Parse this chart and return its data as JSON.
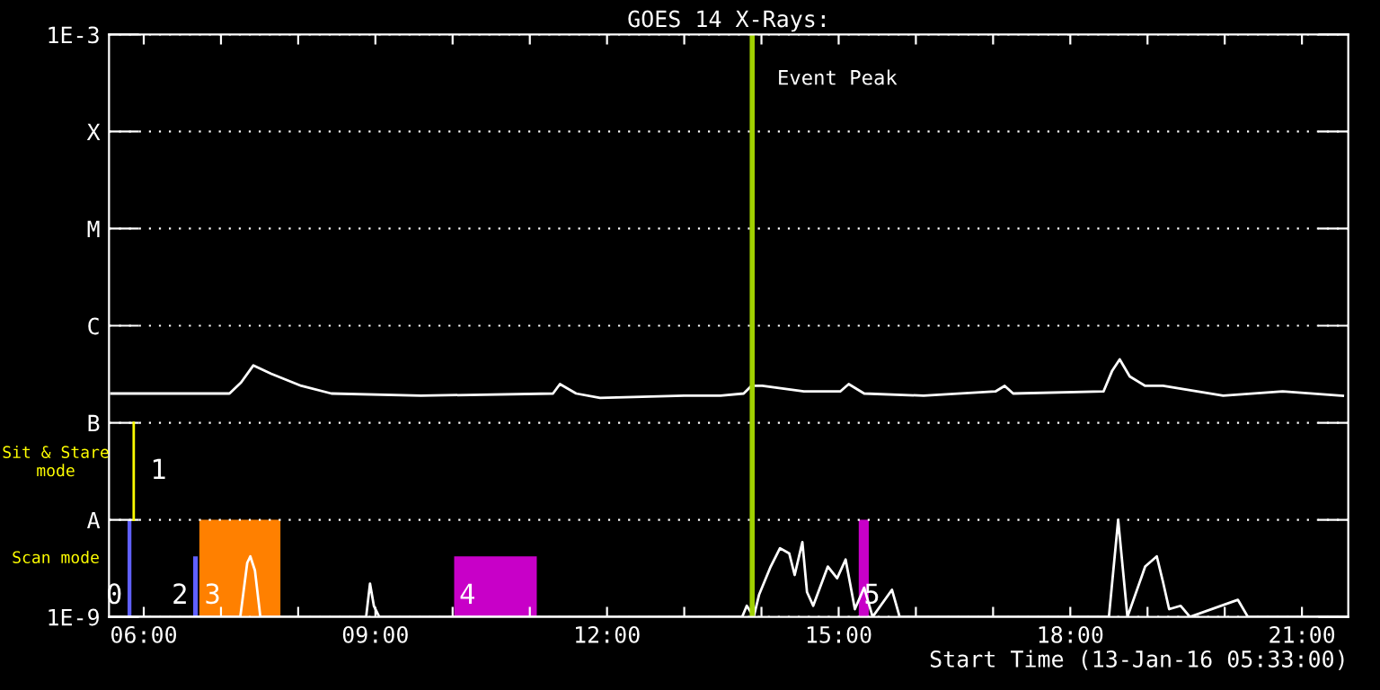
{
  "chart_data": {
    "type": "line",
    "title": "GOES 14 X-Rays:",
    "xlabel": "Start Time (13-Jan-16 05:33:00)",
    "log": "y",
    "grid": "y",
    "xlim": [
      5.55,
      21.6
    ],
    "ylim": [
      1e-09,
      0.001
    ],
    "xticks": [
      {
        "value": 6,
        "label": "06:00"
      },
      {
        "value": 7,
        "label": null
      },
      {
        "value": 8,
        "label": null
      },
      {
        "value": 9,
        "label": "09:00"
      },
      {
        "value": 10,
        "label": null
      },
      {
        "value": 11,
        "label": null
      },
      {
        "value": 12,
        "label": "12:00"
      },
      {
        "value": 13,
        "label": null
      },
      {
        "value": 14,
        "label": null
      },
      {
        "value": 15,
        "label": "15:00"
      },
      {
        "value": 16,
        "label": null
      },
      {
        "value": 17,
        "label": null
      },
      {
        "value": 18,
        "label": "18:00"
      },
      {
        "value": 19,
        "label": null
      },
      {
        "value": 20,
        "label": null
      },
      {
        "value": 21,
        "label": "21:00"
      }
    ],
    "yticks": [
      {
        "value": 1e-09,
        "label": "1E-9"
      },
      {
        "value": 1e-08,
        "label": "A"
      },
      {
        "value": 1e-07,
        "label": "B"
      },
      {
        "value": 1e-06,
        "label": "C"
      },
      {
        "value": 1e-05,
        "label": "M"
      },
      {
        "value": 0.0001,
        "label": "X"
      },
      {
        "value": 0.001,
        "label": "1E-3"
      }
    ],
    "series": [
      {
        "color": "#ffffff",
        "x": [
          5.58,
          6.33,
          7.11,
          7.26,
          7.42,
          7.65,
          8.04,
          8.43,
          9.59,
          11.3,
          11.39,
          11.6,
          11.91,
          13.0,
          13.47,
          13.77,
          13.87,
          14.01,
          14.55,
          15.02,
          15.13,
          15.33,
          16.1,
          17.03,
          17.15,
          17.26,
          18.43,
          18.54,
          18.64,
          18.77,
          18.97,
          19.2,
          19.98,
          20.75,
          21.53
        ],
        "values": [
          2e-07,
          2e-07,
          2e-07,
          2.6e-07,
          3.9e-07,
          3.2e-07,
          2.4e-07,
          2e-07,
          1.9e-07,
          2e-07,
          2.5e-07,
          2e-07,
          1.8e-07,
          1.9e-07,
          1.9e-07,
          2e-07,
          2.4e-07,
          2.4e-07,
          2.1e-07,
          2.1e-07,
          2.5e-07,
          2e-07,
          1.9e-07,
          2.1e-07,
          2.4e-07,
          2e-07,
          2.1e-07,
          3.4e-07,
          4.5e-07,
          3e-07,
          2.4e-07,
          2.4e-07,
          1.9e-07,
          2.1e-07,
          1.9e-07
        ]
      },
      {
        "color": "#ffffff",
        "x": [
          5.58,
          7.25,
          7.34,
          7.38,
          7.44,
          7.51,
          8.88,
          8.93,
          8.98,
          9.05,
          13.75,
          13.81,
          13.9,
          13.97,
          14.12,
          14.24,
          14.36,
          14.43,
          14.53,
          14.59,
          14.67,
          14.86,
          14.98,
          15.09,
          15.21,
          15.33,
          15.44,
          15.69,
          15.79,
          18.5,
          18.62,
          18.74,
          18.97,
          19.12,
          19.2,
          19.28,
          19.43,
          19.55,
          20.17,
          20.3,
          21.6
        ],
        "values": [
          1e-09,
          1e-09,
          3.6e-09,
          4.2e-09,
          3e-09,
          1e-09,
          1e-09,
          2.2e-09,
          1.3e-09,
          1e-09,
          1e-09,
          1.3e-09,
          1e-09,
          1.7e-09,
          3.3e-09,
          5.1e-09,
          4.5e-09,
          2.7e-09,
          5.9e-09,
          1.8e-09,
          1.3e-09,
          3.3e-09,
          2.5e-09,
          3.9e-09,
          1.2e-09,
          2e-09,
          1e-09,
          1.9e-09,
          1e-09,
          1e-09,
          1e-08,
          1e-09,
          3.3e-09,
          4.2e-09,
          2.3e-09,
          1.2e-09,
          1.3e-09,
          1e-09,
          1.5e-09,
          1e-09,
          1e-09
        ]
      },
      {
        "type": "area",
        "name": "0",
        "color": "#6060ff",
        "x": [
          5.79,
          5.84
        ],
        "values": [
          1e-08,
          1e-08
        ]
      },
      {
        "type": "line",
        "name": "1",
        "color": "#ffff00",
        "x": [
          5.87,
          5.87
        ],
        "values": [
          1e-08,
          1e-07
        ]
      },
      {
        "type": "area",
        "name": "2",
        "color": "#6060ff",
        "x": [
          6.64,
          6.7
        ],
        "values": [
          4.2e-09,
          4.2e-09
        ]
      },
      {
        "type": "area",
        "name": "3",
        "color": "#ff8000",
        "x": [
          6.72,
          7.77
        ],
        "values": [
          1e-08,
          1e-08
        ]
      },
      {
        "type": "area",
        "name": "4",
        "color": "#c800c8",
        "x": [
          10.02,
          11.09
        ],
        "values": [
          4.2e-09,
          4.2e-09
        ]
      },
      {
        "type": "area",
        "name": "5",
        "color": "#c800c8",
        "x": [
          15.26,
          15.39
        ],
        "values": [
          1e-08,
          1e-08
        ]
      }
    ],
    "ref_lines": [
      {
        "axis": "x",
        "value": 13.88,
        "label": "Event Peak",
        "color": "#a0d000"
      }
    ],
    "annotations": [
      "Sit & Stare\nmode",
      "Scan mode"
    ]
  }
}
